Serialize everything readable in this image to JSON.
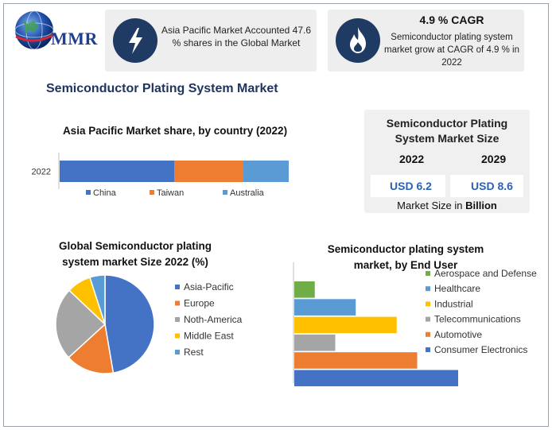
{
  "logo": {
    "text": "MMR"
  },
  "cards": {
    "share_text": "Asia Pacific Market Accounted 47.6 % shares in the Global Market",
    "share_icon": "lightning-icon",
    "cagr_title": "4.9 % CAGR",
    "cagr_text": "Semiconductor plating system market grow at CAGR of 4.9 % in 2022",
    "cagr_icon": "flame-icon"
  },
  "main_title": "Semiconductor Plating System Market",
  "size_card": {
    "title_line1": "Semiconductor Plating",
    "title_line2": "System Market Size",
    "year1": "2022",
    "year2": "2029",
    "value1": "USD 6.2",
    "value2": "USD 8.6",
    "footer_prefix": "Market Size in ",
    "footer_unit": "Billion"
  },
  "colors": {
    "blue": "#4472c4",
    "orange": "#ed7d31",
    "gray": "#a5a5a5",
    "yellow": "#ffc000",
    "lightblue": "#5b9bd5",
    "green": "#70ad47",
    "navy": "#1f3a63"
  },
  "chart_data": [
    {
      "type": "bar",
      "orientation": "horizontal-stacked",
      "title": "Asia Pacific Market share, by country (2022)",
      "categories": [
        "2022"
      ],
      "series": [
        {
          "name": "China",
          "values": [
            50
          ],
          "color": "#4472c4"
        },
        {
          "name": "Taiwan",
          "values": [
            30
          ],
          "color": "#ed7d31"
        },
        {
          "name": "Australia",
          "values": [
            20
          ],
          "color": "#5b9bd5"
        }
      ],
      "legend": "bottom"
    },
    {
      "type": "pie",
      "title_line1": "Global Semiconductor plating",
      "title_line2": "system market  Size 2022 (%)",
      "labels": [
        "Asia-Pacific",
        "Europe",
        "Noth-America",
        "Middle East",
        "Rest"
      ],
      "values": [
        47.6,
        16,
        24,
        8,
        5
      ],
      "colors": [
        "#4472c4",
        "#ed7d31",
        "#a5a5a5",
        "#ffc000",
        "#5b9bd5"
      ],
      "legend": "right"
    },
    {
      "type": "bar",
      "orientation": "horizontal",
      "title_line1": "Semiconductor plating system",
      "title_line2": "market, by End User",
      "categories": [
        "Aerospace and Defense",
        "Healthcare",
        "Industrial",
        "Telecommunications",
        "Automotive",
        "Consumer Electronics"
      ],
      "values": [
        5,
        15,
        25,
        10,
        30,
        40
      ],
      "colors": [
        "#70ad47",
        "#5b9bd5",
        "#ffc000",
        "#a5a5a5",
        "#ed7d31",
        "#4472c4"
      ],
      "legend": "right"
    }
  ]
}
